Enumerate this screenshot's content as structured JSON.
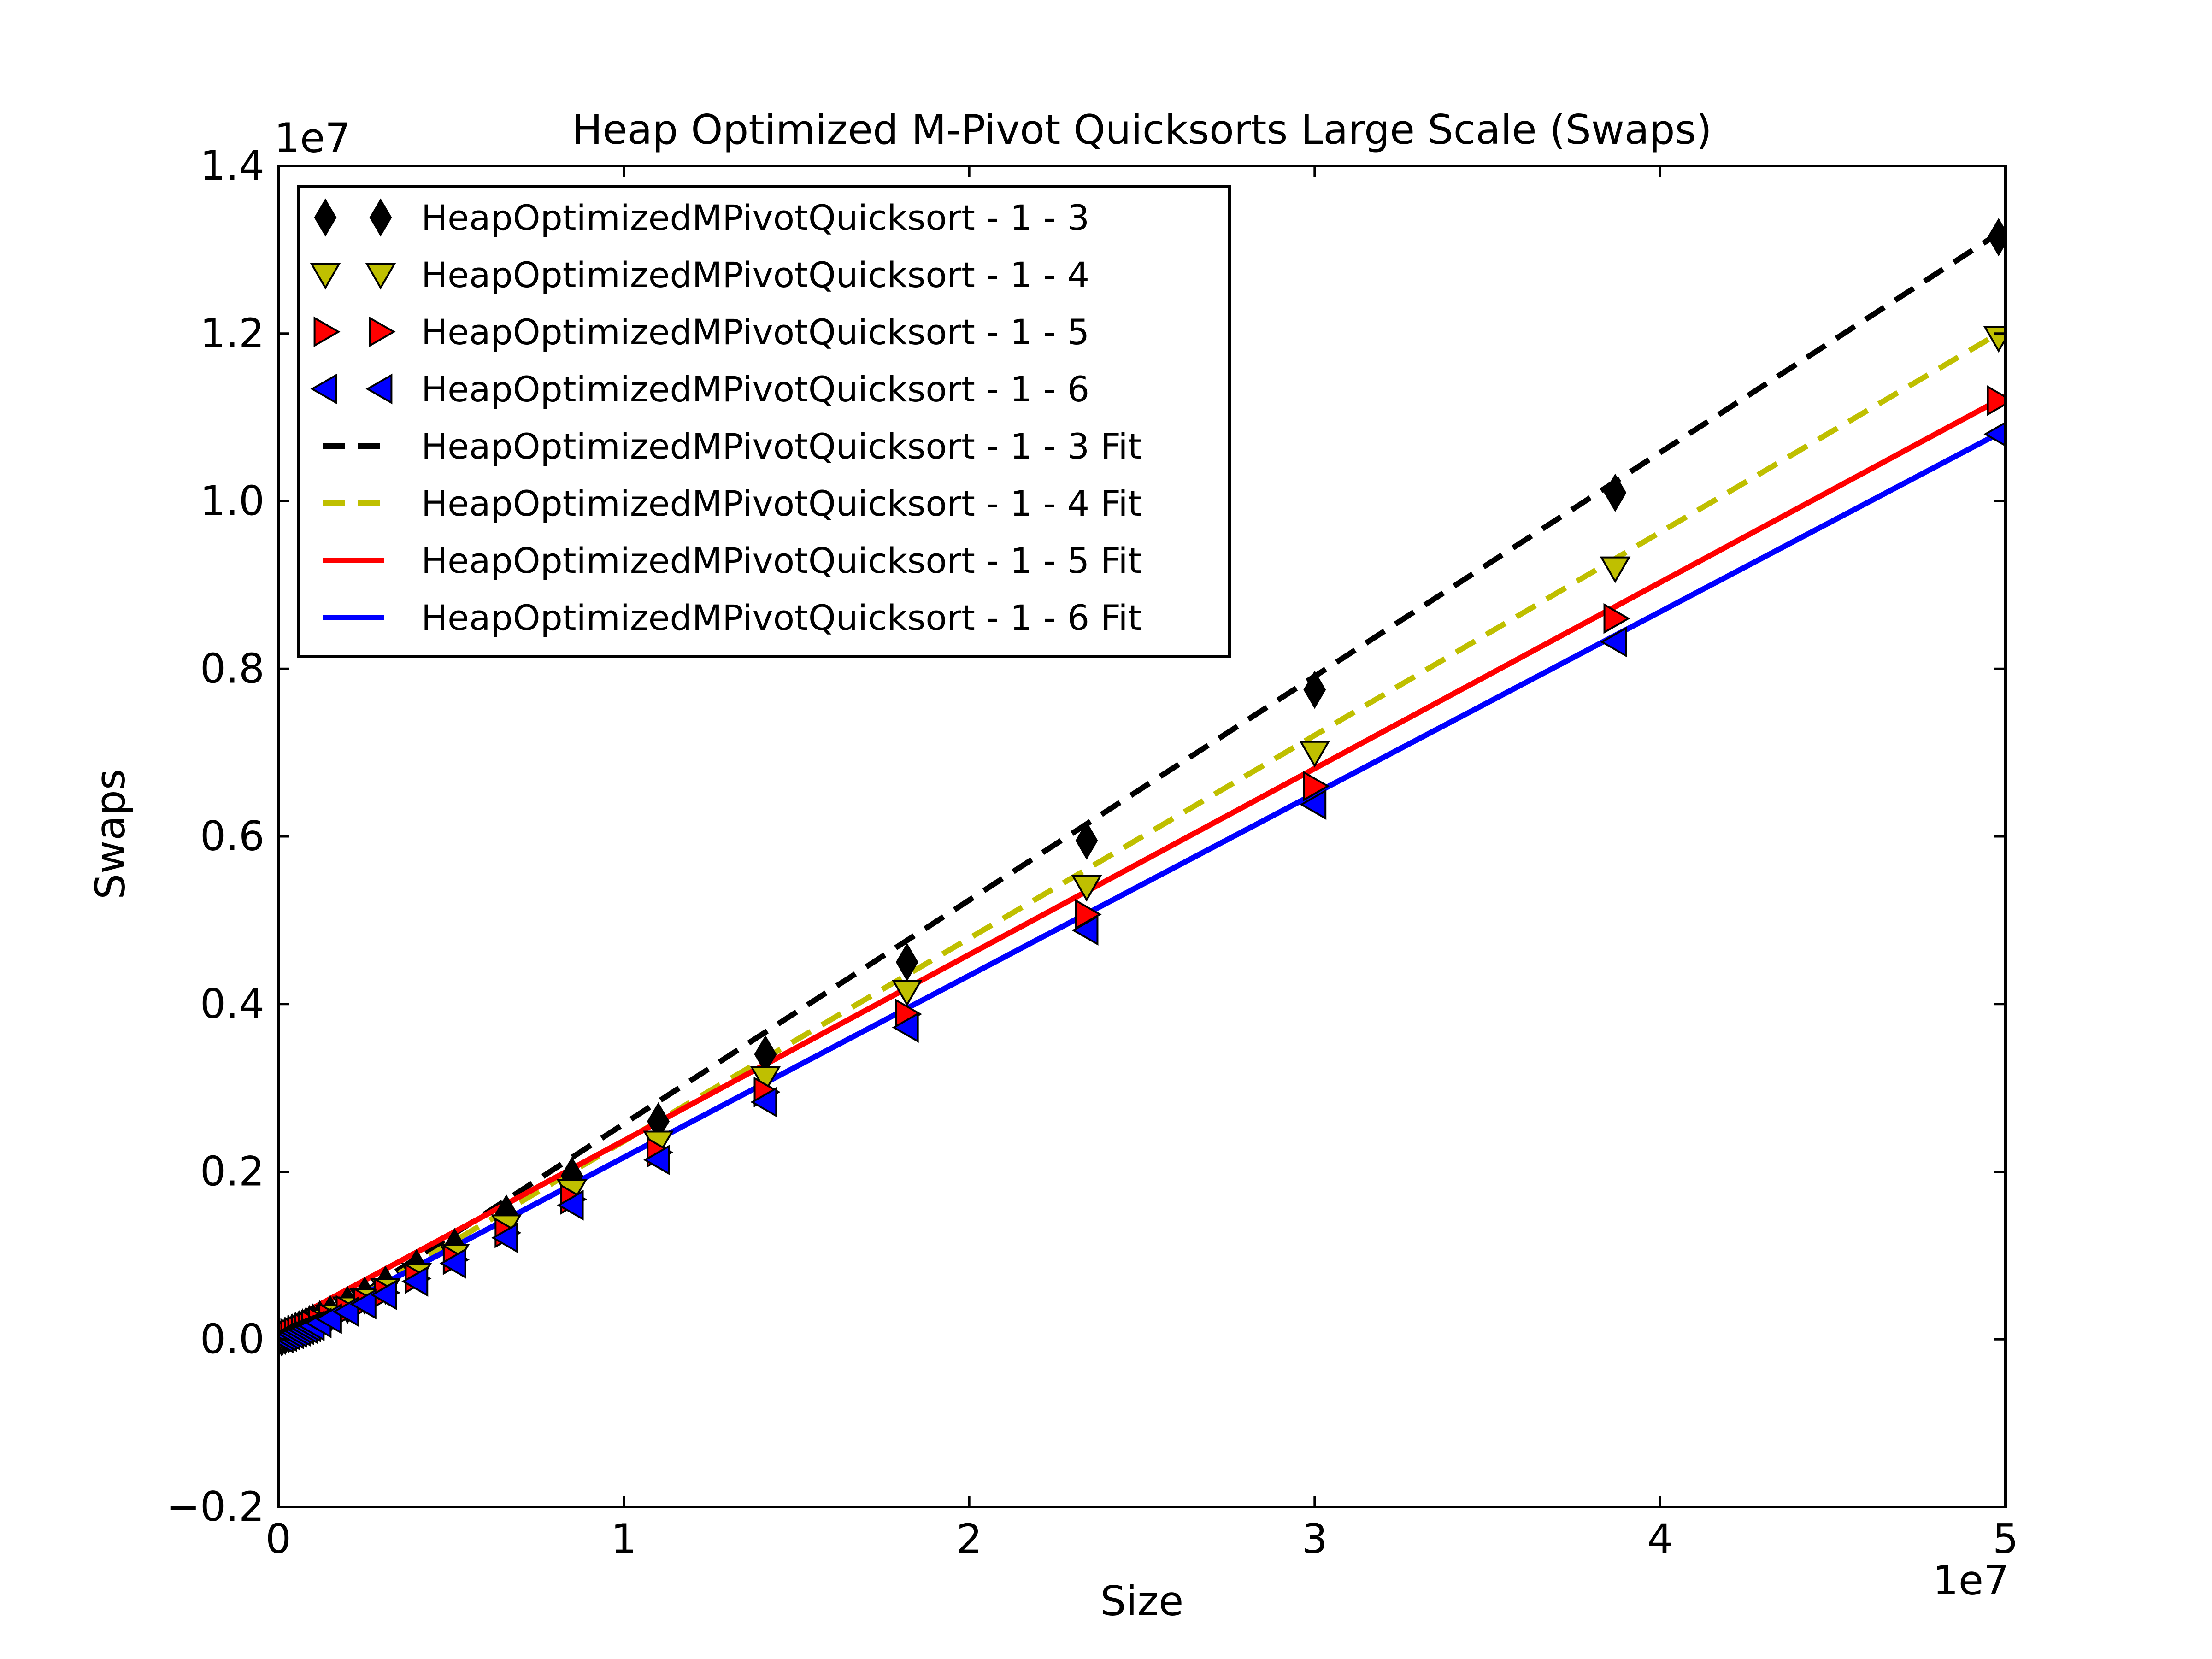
{
  "chart_data": {
    "type": "scatter",
    "title": "Heap Optimized M-Pivot Quicksorts Large Scale (Swaps)",
    "xlabel": "Size",
    "ylabel": "Swaps",
    "xlim": [
      0,
      50000000
    ],
    "ylim": [
      -2000000,
      14000000
    ],
    "x_ticks": [
      0,
      10000000,
      20000000,
      30000000,
      40000000,
      50000000
    ],
    "x_tick_labels": [
      "0",
      "1",
      "2",
      "3",
      "4",
      "5"
    ],
    "y_ticks": [
      -2000000,
      0,
      2000000,
      4000000,
      6000000,
      8000000,
      10000000,
      12000000,
      14000000
    ],
    "y_tick_labels": [
      "−0.2",
      "0.0",
      "0.2",
      "0.4",
      "0.6",
      "0.8",
      "1.0",
      "1.2",
      "1.4"
    ],
    "x_offset_label": "1e7",
    "y_offset_label": "1e7",
    "grid": false,
    "legend_position": "top-left",
    "x": [
      100000,
      200000,
      300000,
      400000,
      500000,
      600000,
      700000,
      800000,
      900000,
      1000000,
      1200000,
      1500000,
      2000000,
      2500000,
      3100000,
      4000000,
      5100000,
      6600000,
      8500000,
      11000000,
      14100000,
      18200000,
      23400000,
      30000000,
      38700000,
      49800000
    ],
    "series": [
      {
        "name": "HeapOptimizedMPivotQuicksort - 1 - 3",
        "marker": "diamond",
        "color": "#000000",
        "values": [
          20000,
          40000,
          60000,
          80000,
          100000,
          120000,
          140000,
          160000,
          180000,
          200000,
          240000,
          300000,
          410000,
          520000,
          650000,
          850000,
          1100000,
          1500000,
          1950000,
          2600000,
          3400000,
          4500000,
          5950000,
          7750000,
          10100000,
          13150000
        ]
      },
      {
        "name": "HeapOptimizedMPivotQuicksort - 1 - 4",
        "marker": "triangle-down",
        "color": "#bfbf00",
        "values": [
          18000,
          36000,
          54000,
          72000,
          90000,
          110000,
          128000,
          146000,
          164000,
          182000,
          220000,
          275000,
          370000,
          470000,
          590000,
          770000,
          1000000,
          1350000,
          1770000,
          2350000,
          3120000,
          4150000,
          5400000,
          7000000,
          9200000,
          11950000
        ]
      },
      {
        "name": "HeapOptimizedMPivotQuicksort - 1 - 5",
        "marker": "triangle-right",
        "color": "#ff0000",
        "values": [
          17000,
          34000,
          51000,
          68000,
          85000,
          102000,
          119000,
          136000,
          153000,
          170000,
          205000,
          255000,
          345000,
          440000,
          555000,
          725000,
          950000,
          1270000,
          1670000,
          2230000,
          2950000,
          3880000,
          5070000,
          6600000,
          8600000,
          11200000
        ]
      },
      {
        "name": "HeapOptimizedMPivotQuicksort - 1 - 6",
        "marker": "triangle-left",
        "color": "#0000ff",
        "values": [
          16000,
          32000,
          48000,
          64000,
          80000,
          96000,
          112000,
          128000,
          144000,
          160000,
          195000,
          245000,
          330000,
          420000,
          530000,
          690000,
          905000,
          1210000,
          1600000,
          2140000,
          2830000,
          3720000,
          4880000,
          6380000,
          8320000,
          10800000
        ]
      }
    ],
    "fits": [
      {
        "name": "HeapOptimizedMPivotQuicksort - 1 - 3 Fit",
        "color": "#000000",
        "style": "dashed",
        "x": [
          0,
          50000000
        ],
        "y": [
          -100000,
          13250000
        ]
      },
      {
        "name": "HeapOptimizedMPivotQuicksort - 1 - 4 Fit",
        "color": "#bfbf00",
        "style": "dashed",
        "x": [
          0,
          50000000
        ],
        "y": [
          -60000,
          12050000
        ]
      },
      {
        "name": "HeapOptimizedMPivotQuicksort - 1 - 5 Fit",
        "color": "#ff0000",
        "style": "solid",
        "x": [
          0,
          50000000
        ],
        "y": [
          150000,
          11250000
        ]
      },
      {
        "name": "HeapOptimizedMPivotQuicksort - 1 - 6 Fit",
        "color": "#0000ff",
        "style": "solid",
        "x": [
          0,
          50000000
        ],
        "y": [
          0,
          10850000
        ]
      }
    ]
  }
}
